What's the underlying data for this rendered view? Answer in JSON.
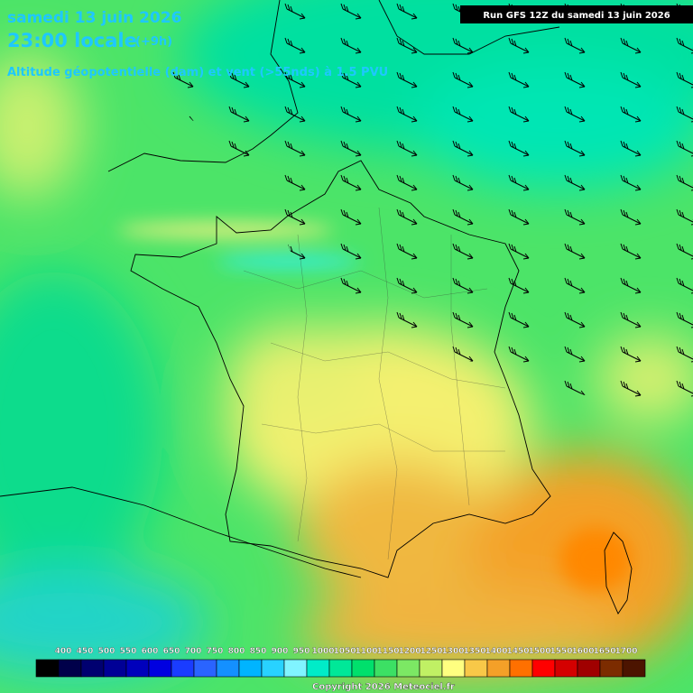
{
  "header": {
    "date": "samedi 13 juin 2026",
    "time": "23:00 locale",
    "offset": "(+9h)",
    "subtitle": "Altitude géopotentielle (dam) et vent (>55nds) à 1.5 PVU",
    "run": "Run GFS 12Z du samedi 13 juin 2026"
  },
  "legend": {
    "labels": [
      400,
      450,
      500,
      550,
      600,
      650,
      700,
      750,
      800,
      850,
      900,
      950,
      1000,
      1050,
      1100,
      1150,
      1200,
      1250,
      1300,
      1350,
      1400,
      1450,
      1500,
      1550,
      1600,
      1650,
      1700
    ],
    "colors": [
      "#000000",
      "#00004a",
      "#000070",
      "#000096",
      "#0000bc",
      "#0000e0",
      "#1a3cff",
      "#2a64ff",
      "#1490ff",
      "#00b4ff",
      "#28d2ff",
      "#80f4ff",
      "#00ecc8",
      "#00e898",
      "#00e06c",
      "#3ce064",
      "#7ce864",
      "#c0f064",
      "#ffff80",
      "#f8c848",
      "#f4a028",
      "#ff7000",
      "#ff0000",
      "#d40000",
      "#a00000",
      "#7c2c00",
      "#4c1400"
    ]
  },
  "footer": {
    "copyright": "Copyright 2026 Meteociel.fr"
  }
}
